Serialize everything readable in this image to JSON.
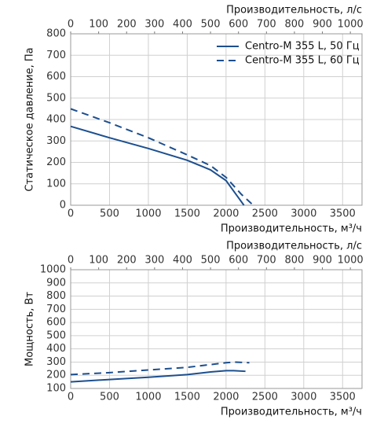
{
  "chart_data": [
    {
      "type": "line",
      "ylabel": "Статическое давление, Па",
      "xlabel": "Производительность, м³/ч",
      "x2label": "Производительность, л/с",
      "xlim": [
        0,
        3750
      ],
      "xticks": [
        0,
        500,
        1000,
        1500,
        2000,
        2500,
        3000,
        3500
      ],
      "x2lim": [
        0,
        1041.67
      ],
      "x2ticks": [
        0,
        100,
        200,
        300,
        400,
        500,
        600,
        700,
        800,
        900,
        1000
      ],
      "ylim": [
        0,
        800
      ],
      "yticks": [
        0,
        100,
        200,
        300,
        400,
        500,
        600,
        700,
        800
      ],
      "grid": true,
      "legend": "upper right",
      "series": [
        {
          "name": "Centro-M 355 L, 50 Гц",
          "color": "#1c4f8f",
          "dash": "solid",
          "x": [
            0,
            500,
            1000,
            1500,
            1800,
            2000,
            2100,
            2230
          ],
          "values": [
            368,
            315,
            265,
            210,
            165,
            115,
            65,
            0
          ]
        },
        {
          "name": "Centro-M 355 L, 60 Гц",
          "color": "#1c4f8f",
          "dash": "dashed",
          "x": [
            0,
            500,
            1000,
            1500,
            1800,
            2000,
            2200,
            2350
          ],
          "values": [
            450,
            385,
            315,
            235,
            185,
            130,
            50,
            0
          ]
        }
      ]
    },
    {
      "type": "line",
      "ylabel": "Мощность, Вт",
      "xlabel": "Производительность, м³/ч",
      "x2label": "Производительность, л/с",
      "xlim": [
        0,
        3750
      ],
      "xticks": [
        0,
        500,
        1000,
        1500,
        2000,
        2500,
        3000,
        3500
      ],
      "x2lim": [
        0,
        1041.67
      ],
      "x2ticks": [
        0,
        100,
        200,
        300,
        400,
        500,
        600,
        700,
        800,
        900,
        1000
      ],
      "ylim": [
        100,
        1000
      ],
      "yticks": [
        100,
        200,
        300,
        400,
        500,
        600,
        700,
        800,
        900,
        1000
      ],
      "grid": true,
      "series": [
        {
          "color": "#1c4f8f",
          "dash": "solid",
          "x": [
            0,
            500,
            1000,
            1500,
            1800,
            2000,
            2100,
            2250
          ],
          "values": [
            150,
            168,
            185,
            205,
            225,
            235,
            235,
            230
          ]
        },
        {
          "color": "#1c4f8f",
          "dash": "dashed",
          "x": [
            0,
            500,
            1000,
            1500,
            2000,
            2100,
            2300
          ],
          "values": [
            205,
            220,
            240,
            260,
            295,
            300,
            295
          ]
        }
      ]
    }
  ]
}
